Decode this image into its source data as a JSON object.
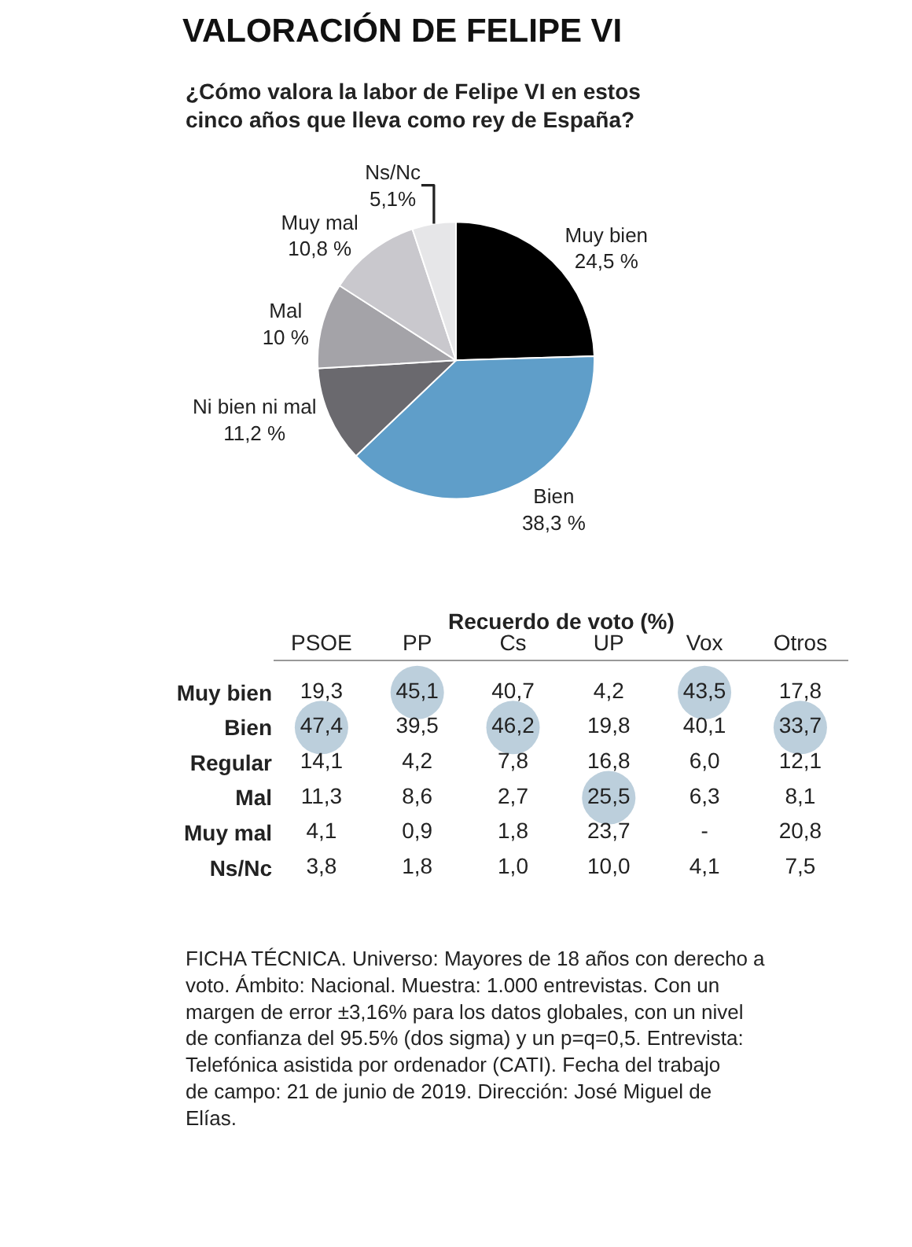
{
  "chart_data": [
    {
      "type": "pie",
      "title": "VALORACIÓN DE FELIPE VI",
      "subtitle": "¿Cómo valora la labor de Felipe VI en estos cinco años que lleva como rey de España?",
      "categories": [
        "Muy bien",
        "Bien",
        "Ni bien ni mal",
        "Mal",
        "Muy mal",
        "Ns/Nc"
      ],
      "values": [
        24.5,
        38.3,
        11.2,
        10,
        10.8,
        5.1
      ],
      "value_labels": [
        "24,5 %",
        "38,3 %",
        "11,2 %",
        "10 %",
        "10,8 %",
        "5,1%"
      ],
      "colors": [
        "#000000",
        "#5f9ec9",
        "#6a696e",
        "#a4a3a8",
        "#c9c8cd",
        "#e6e6e8"
      ]
    },
    {
      "type": "heatmap",
      "title": "Recuerdo de voto (%)",
      "categories": [
        "PSOE",
        "PP",
        "Cs",
        "UP",
        "Vox",
        "Otros"
      ],
      "y_categories": [
        "Muy bien",
        "Bien",
        "Regular",
        "Mal",
        "Muy mal",
        "Ns/Nc"
      ],
      "cells": [
        [
          19.3,
          45.1,
          40.7,
          4.2,
          43.5,
          17.8
        ],
        [
          47.4,
          39.5,
          46.2,
          19.8,
          40.1,
          33.7
        ],
        [
          14.1,
          4.2,
          7.8,
          16.8,
          6.0,
          12.1
        ],
        [
          11.3,
          8.6,
          2.7,
          25.5,
          6.3,
          8.1
        ],
        [
          4.1,
          0.9,
          1.8,
          23.7,
          null,
          20.8
        ],
        [
          3.8,
          1.8,
          1.0,
          10.0,
          4.1,
          7.5
        ]
      ],
      "cell_labels": [
        [
          "19,3",
          "45,1",
          "40,7",
          "4,2",
          "43,5",
          "17,8"
        ],
        [
          "47,4",
          "39,5",
          "46,2",
          "19,8",
          "40,1",
          "33,7"
        ],
        [
          "14,1",
          "4,2",
          "7,8",
          "16,8",
          "6,0",
          "12,1"
        ],
        [
          "11,3",
          "8,6",
          "2,7",
          "25,5",
          "6,3",
          "8,1"
        ],
        [
          "4,1",
          "0,9",
          "1,8",
          "23,7",
          "-",
          "20,8"
        ],
        [
          "3,8",
          "1,8",
          "1,0",
          "10,0",
          "4,1",
          "7,5"
        ]
      ],
      "annotations": [
        "FICHA TÉCNICA. Universo: Mayores de 18 años con derecho a voto. Ámbito: Nacional. Muestra: 1.000 entrevistas. Con un margen de error ±3,16% para los datos globales, con un nivel de confianza del 95.5% (dos sigma) y un p=q=0,5. Entrevista: Telefónica asistida por ordenador (CATI). Fecha del trabajo de campo: 21 de junio de 2019. Dirección: José Miguel de Elías."
      ]
    }
  ]
}
